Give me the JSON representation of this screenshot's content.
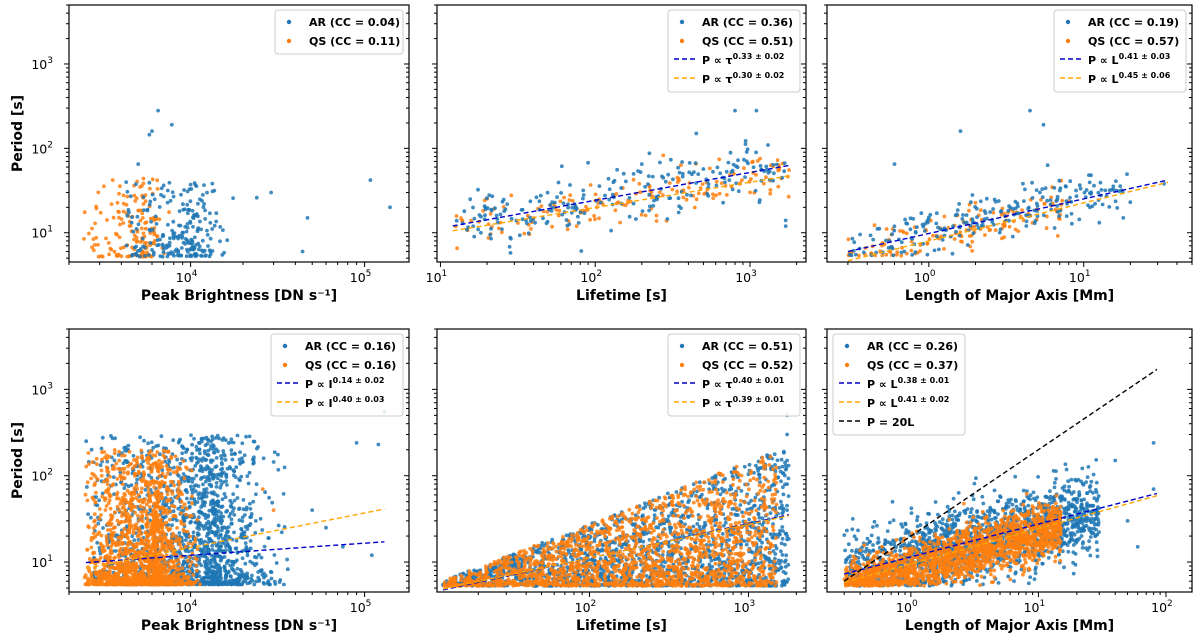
{
  "colors": {
    "ar": "#1f77b4",
    "qs": "#ff7f0e",
    "ar_fit": "#0000cc",
    "qs_fit": "#ffa500",
    "ref": "#000000"
  },
  "axis_labels": {
    "ylabel": "Period [s]",
    "brightness": "Peak Brightness [DN s⁻¹]",
    "lifetime": "Lifetime [s]",
    "length": "Length of Major Axis [Mm]"
  },
  "chart_data": [
    {
      "type": "scatter",
      "id": "a",
      "xscale": "log",
      "yscale": "log",
      "xlim": [
        2000,
        180000
      ],
      "ylim": [
        4.5,
        5000
      ],
      "xticks": [
        {
          "v": 10000,
          "label": "10",
          "exp": "4"
        },
        {
          "v": 100000,
          "label": "10",
          "exp": "5"
        }
      ],
      "xlabel_key": "brightness",
      "legend": {
        "position": "top-right",
        "entries": [
          {
            "kind": "dot",
            "color": "ar",
            "label": "AR (CC = 0.04)"
          },
          {
            "kind": "dot",
            "color": "qs",
            "label": "QS (CC = 0.11)"
          }
        ]
      },
      "clouds": [
        {
          "color": "qs",
          "n": 160,
          "x": [
            2400,
            9000
          ],
          "y": [
            5.2,
            45
          ],
          "skew": 2.2
        },
        {
          "color": "ar",
          "n": 230,
          "x": [
            4000,
            20000
          ],
          "y": [
            5.2,
            40
          ],
          "skew": 1.6
        }
      ],
      "points": [
        {
          "color": "ar",
          "x": 6500,
          "y": 280
        },
        {
          "color": "ar",
          "x": 7800,
          "y": 190
        },
        {
          "color": "ar",
          "x": 6000,
          "y": 160
        },
        {
          "color": "ar",
          "x": 5800,
          "y": 145
        },
        {
          "color": "ar",
          "x": 5000,
          "y": 65
        },
        {
          "color": "ar",
          "x": 108000,
          "y": 42
        },
        {
          "color": "ar",
          "x": 140000,
          "y": 20
        },
        {
          "color": "ar",
          "x": 29000,
          "y": 30
        },
        {
          "color": "ar",
          "x": 47000,
          "y": 15
        },
        {
          "color": "ar",
          "x": 24000,
          "y": 26
        },
        {
          "color": "ar",
          "x": 44000,
          "y": 6
        }
      ],
      "fits": []
    },
    {
      "type": "scatter",
      "id": "b",
      "xscale": "log",
      "yscale": "log",
      "xlim": [
        9.5,
        2300
      ],
      "ylim": [
        4.5,
        5000
      ],
      "xticks": [
        {
          "v": 10,
          "label": "10",
          "exp": "1"
        },
        {
          "v": 100,
          "label": "10",
          "exp": "2"
        },
        {
          "v": 1000,
          "label": "10",
          "exp": "3"
        }
      ],
      "xlabel_key": "lifetime",
      "legend": {
        "position": "top-right",
        "entries": [
          {
            "kind": "dot",
            "color": "ar",
            "label": "AR (CC = 0.36)"
          },
          {
            "kind": "dot",
            "color": "qs",
            "label": "QS (CC = 0.51)"
          },
          {
            "kind": "line",
            "color": "ar_fit",
            "sym": "τ",
            "label": "P ∝ τ",
            "exp": "0.33 ± 0.02"
          },
          {
            "kind": "line",
            "color": "qs_fit",
            "sym": "τ",
            "label": "P ∝ τ",
            "exp": "0.30 ± 0.02"
          }
        ]
      },
      "clouds": [
        {
          "color": "qs",
          "n": 170,
          "x": [
            12,
            1800
          ],
          "trend": [
            5.2,
            0.31
          ],
          "spread": 0.28
        },
        {
          "color": "ar",
          "n": 230,
          "x": [
            12,
            1800
          ],
          "trend": [
            5.4,
            0.33
          ],
          "spread": 0.3
        }
      ],
      "points": [
        {
          "color": "ar",
          "x": 800,
          "y": 280
        },
        {
          "color": "ar",
          "x": 1100,
          "y": 280
        },
        {
          "color": "ar",
          "x": 450,
          "y": 150
        },
        {
          "color": "ar",
          "x": 200,
          "y": 65
        },
        {
          "color": "ar",
          "x": 1700,
          "y": 14
        },
        {
          "color": "ar",
          "x": 1700,
          "y": 12
        }
      ],
      "fits": [
        {
          "color": "ar_fit",
          "a": 5.3,
          "b": 0.33,
          "x": [
            12,
            1800
          ]
        },
        {
          "color": "qs_fit",
          "a": 5.0,
          "b": 0.3,
          "x": [
            12,
            1800
          ]
        }
      ]
    },
    {
      "type": "scatter",
      "id": "c",
      "xscale": "log",
      "yscale": "log",
      "xlim": [
        0.22,
        50
      ],
      "ylim": [
        4.5,
        5000
      ],
      "xticks": [
        {
          "v": 1,
          "label": "10",
          "exp": "0"
        },
        {
          "v": 10,
          "label": "10",
          "exp": "1"
        }
      ],
      "xlabel_key": "length",
      "legend": {
        "position": "top-right",
        "entries": [
          {
            "kind": "dot",
            "color": "ar",
            "label": "AR (CC = 0.19)"
          },
          {
            "kind": "dot",
            "color": "qs",
            "label": "QS (CC = 0.57)"
          },
          {
            "kind": "line",
            "color": "ar_fit",
            "label": "P ∝ L",
            "exp": "0.41 ± 0.03"
          },
          {
            "kind": "line",
            "color": "qs_fit",
            "label": "P ∝ L",
            "exp": "0.45 ± 0.06"
          }
        ]
      },
      "clouds": [
        {
          "color": "qs",
          "n": 150,
          "x": [
            0.3,
            8
          ],
          "trend": [
            8.5,
            0.45
          ],
          "spread": 0.26
        },
        {
          "color": "ar",
          "n": 230,
          "x": [
            0.3,
            20
          ],
          "trend": [
            10.5,
            0.41
          ],
          "spread": 0.3
        }
      ],
      "points": [
        {
          "color": "ar",
          "x": 4.5,
          "y": 280
        },
        {
          "color": "ar",
          "x": 5.5,
          "y": 190
        },
        {
          "color": "ar",
          "x": 1.6,
          "y": 160
        },
        {
          "color": "ar",
          "x": 0.6,
          "y": 65
        },
        {
          "color": "ar",
          "x": 33,
          "y": 38
        },
        {
          "color": "ar",
          "x": 18,
          "y": 15
        }
      ],
      "fits": [
        {
          "color": "ar_fit",
          "a": 9.8,
          "b": 0.41,
          "x": [
            0.3,
            35
          ]
        },
        {
          "color": "qs_fit",
          "a": 8.0,
          "b": 0.45,
          "x": [
            0.3,
            35
          ]
        }
      ]
    },
    {
      "type": "scatter",
      "id": "d",
      "xscale": "log",
      "yscale": "log",
      "xlim": [
        2000,
        180000
      ],
      "ylim": [
        4.5,
        5000
      ],
      "xticks": [
        {
          "v": 10000,
          "label": "10",
          "exp": "4"
        },
        {
          "v": 100000,
          "label": "10",
          "exp": "5"
        }
      ],
      "xlabel_key": "brightness",
      "legend": {
        "position": "top-right",
        "entries": [
          {
            "kind": "dot",
            "color": "ar",
            "label": "AR (CC = 0.16)"
          },
          {
            "kind": "dot",
            "color": "qs",
            "label": "QS (CC = 0.16)"
          },
          {
            "kind": "line",
            "color": "ar_fit",
            "label": "P ∝ I",
            "exp": "0.14 ± 0.02"
          },
          {
            "kind": "line",
            "color": "qs_fit",
            "label": "P ∝ I",
            "exp": "0.40 ± 0.03"
          }
        ]
      },
      "clouds": [
        {
          "color": "ar",
          "n": 1600,
          "x": [
            2500,
            40000
          ],
          "y": [
            5.5,
            300
          ],
          "skew": 2.0
        },
        {
          "color": "qs",
          "n": 1600,
          "x": [
            2400,
            12000
          ],
          "y": [
            5.5,
            200
          ],
          "skew": 2.6
        }
      ],
      "points": [
        {
          "color": "ar",
          "x": 90000,
          "y": 240
        },
        {
          "color": "ar",
          "x": 120000,
          "y": 230
        },
        {
          "color": "ar",
          "x": 130000,
          "y": 550
        },
        {
          "color": "ar",
          "x": 60000,
          "y": 25
        },
        {
          "color": "ar",
          "x": 75000,
          "y": 15
        },
        {
          "color": "ar",
          "x": 50000,
          "y": 40
        },
        {
          "color": "ar",
          "x": 110000,
          "y": 12
        },
        {
          "color": "qs",
          "x": 26000,
          "y": 70
        },
        {
          "color": "qs",
          "x": 30000,
          "y": 40
        }
      ],
      "fits": [
        {
          "color": "ar_fit",
          "a": 3.3,
          "b": 0.14,
          "x": [
            2500,
            130000
          ]
        },
        {
          "color": "qs_fit",
          "a": 0.37,
          "b": 0.4,
          "x": [
            2500,
            130000
          ]
        }
      ]
    },
    {
      "type": "scatter",
      "id": "e",
      "xscale": "log",
      "yscale": "log",
      "xlim": [
        11,
        2300
      ],
      "ylim": [
        4.5,
        5000
      ],
      "xticks": [
        {
          "v": 100,
          "label": "10",
          "exp": "2"
        },
        {
          "v": 1000,
          "label": "10",
          "exp": "3"
        }
      ],
      "xlabel_key": "lifetime",
      "legend": {
        "position": "top-right",
        "entries": [
          {
            "kind": "dot",
            "color": "ar",
            "label": "AR (CC = 0.51)"
          },
          {
            "kind": "dot",
            "color": "qs",
            "label": "QS (CC = 0.52)"
          },
          {
            "kind": "line",
            "color": "ar_fit",
            "label": "P ∝ τ",
            "exp": "0.40 ± 0.01"
          },
          {
            "kind": "line",
            "color": "qs_fit",
            "label": "P ∝ τ",
            "exp": "0.39 ± 0.01"
          }
        ]
      },
      "clouds": [
        {
          "color": "ar",
          "n": 1700,
          "x": [
            12,
            1800
          ],
          "wedge": true
        },
        {
          "color": "qs",
          "n": 1700,
          "x": [
            12,
            1500
          ],
          "wedge": true
        }
      ],
      "points": [
        {
          "color": "ar",
          "x": 1750,
          "y": 500
        },
        {
          "color": "ar",
          "x": 1750,
          "y": 300
        },
        {
          "color": "ar",
          "x": 1750,
          "y": 150
        },
        {
          "color": "ar",
          "x": 1750,
          "y": 80
        },
        {
          "color": "ar",
          "x": 1750,
          "y": 40
        },
        {
          "color": "ar",
          "x": 1750,
          "y": 20
        }
      ],
      "fits": [
        {
          "color": "ar_fit",
          "a": 1.76,
          "b": 0.4,
          "x": [
            12,
            1800
          ]
        },
        {
          "color": "qs_fit",
          "a": 1.85,
          "b": 0.39,
          "x": [
            12,
            1800
          ]
        }
      ]
    },
    {
      "type": "scatter",
      "id": "f",
      "xscale": "log",
      "yscale": "log",
      "xlim": [
        0.22,
        160
      ],
      "ylim": [
        4.5,
        5000
      ],
      "xticks": [
        {
          "v": 1,
          "label": "10",
          "exp": "0"
        },
        {
          "v": 10,
          "label": "10",
          "exp": "1"
        },
        {
          "v": 100,
          "label": "10",
          "exp": "2"
        }
      ],
      "xlabel_key": "length",
      "legend": {
        "position": "top-left",
        "entries": [
          {
            "kind": "dot",
            "color": "ar",
            "label": "AR (CC = 0.26)"
          },
          {
            "kind": "dot",
            "color": "qs",
            "label": "QS (CC = 0.37)"
          },
          {
            "kind": "line",
            "color": "ar_fit",
            "label": "P ∝ L",
            "exp": "0.38 ± 0.01"
          },
          {
            "kind": "line",
            "color": "qs_fit",
            "label": "P ∝ L",
            "exp": "0.41 ± 0.02"
          },
          {
            "kind": "line",
            "color": "ref",
            "label": "P = 20L",
            "exp": ""
          }
        ]
      },
      "clouds": [
        {
          "color": "ar",
          "n": 1600,
          "x": [
            0.3,
            30
          ],
          "trend": [
            11,
            0.38
          ],
          "spread": 0.45
        },
        {
          "color": "qs",
          "n": 1700,
          "x": [
            0.3,
            15
          ],
          "trend": [
            8.5,
            0.41
          ],
          "spread": 0.3
        }
      ],
      "points": [
        {
          "color": "ar",
          "x": 80,
          "y": 240
        },
        {
          "color": "ar",
          "x": 80,
          "y": 70
        },
        {
          "color": "ar",
          "x": 50,
          "y": 30
        },
        {
          "color": "ar",
          "x": 60,
          "y": 15
        },
        {
          "color": "ar",
          "x": 40,
          "y": 150
        }
      ],
      "fits": [
        {
          "color": "ar_fit",
          "a": 11.5,
          "b": 0.38,
          "x": [
            0.3,
            85
          ]
        },
        {
          "color": "qs_fit",
          "a": 9.5,
          "b": 0.41,
          "x": [
            0.3,
            85
          ]
        },
        {
          "color": "ref",
          "a": 20,
          "b": 1.0,
          "x": [
            0.3,
            85
          ]
        }
      ]
    }
  ]
}
